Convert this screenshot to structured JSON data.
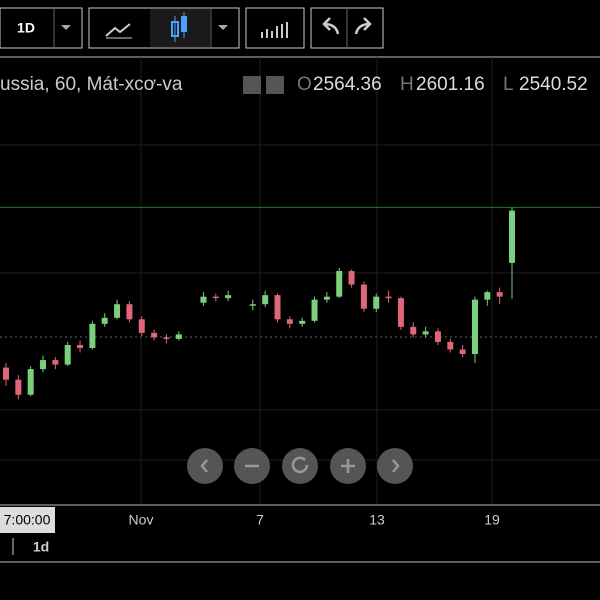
{
  "toolbar": {
    "interval": "1D"
  },
  "chart_data": {
    "type": "candlestick",
    "symbol": "ussia, 60, Mát-xcơ-va",
    "ohlc_labels": [
      "O",
      "H",
      "L"
    ],
    "up_color": "#7ccf7c",
    "down_color": "#e0667a",
    "ylim": [
      2404,
      2712
    ],
    "candles": [
      {
        "o": 2495,
        "h": 2498,
        "l": 2483,
        "c": 2487
      },
      {
        "o": 2487,
        "h": 2490,
        "l": 2474,
        "c": 2477
      },
      {
        "o": 2477,
        "h": 2496,
        "l": 2476,
        "c": 2494
      },
      {
        "o": 2494,
        "h": 2503,
        "l": 2492,
        "c": 2500
      },
      {
        "o": 2500,
        "h": 2502,
        "l": 2494,
        "c": 2497
      },
      {
        "o": 2497,
        "h": 2512,
        "l": 2496,
        "c": 2510
      },
      {
        "o": 2510,
        "h": 2513,
        "l": 2505,
        "c": 2508
      },
      {
        "o": 2508,
        "h": 2526,
        "l": 2507,
        "c": 2524
      },
      {
        "o": 2524,
        "h": 2531,
        "l": 2522,
        "c": 2528
      },
      {
        "o": 2528,
        "h": 2540,
        "l": 2527,
        "c": 2537
      },
      {
        "o": 2537,
        "h": 2539,
        "l": 2525,
        "c": 2527
      },
      {
        "o": 2527,
        "h": 2529,
        "l": 2516,
        "c": 2518
      },
      {
        "o": 2518,
        "h": 2520,
        "l": 2513,
        "c": 2515
      },
      {
        "o": 2515,
        "h": 2517,
        "l": 2511,
        "c": 2514
      },
      {
        "o": 2514,
        "h": 2519,
        "l": 2513,
        "c": 2517
      },
      null,
      {
        "o": 2538,
        "h": 2545,
        "l": 2536,
        "c": 2542
      },
      {
        "o": 2542,
        "h": 2544,
        "l": 2539,
        "c": 2541
      },
      {
        "o": 2541,
        "h": 2546,
        "l": 2539,
        "c": 2543
      },
      null,
      {
        "o": 2536,
        "h": 2540,
        "l": 2533,
        "c": 2537
      },
      {
        "o": 2537,
        "h": 2546,
        "l": 2535,
        "c": 2543
      },
      {
        "o": 2543,
        "h": 2544,
        "l": 2525,
        "c": 2527
      },
      {
        "o": 2527,
        "h": 2529,
        "l": 2521,
        "c": 2524
      },
      {
        "o": 2524,
        "h": 2528,
        "l": 2522,
        "c": 2526
      },
      {
        "o": 2526,
        "h": 2542,
        "l": 2525,
        "c": 2540
      },
      {
        "o": 2540,
        "h": 2545,
        "l": 2538,
        "c": 2542
      },
      {
        "o": 2542,
        "h": 2561,
        "l": 2541,
        "c": 2559
      },
      {
        "o": 2559,
        "h": 2560,
        "l": 2548,
        "c": 2550
      },
      {
        "o": 2550,
        "h": 2552,
        "l": 2532,
        "c": 2534
      },
      {
        "o": 2534,
        "h": 2544,
        "l": 2532,
        "c": 2542
      },
      {
        "o": 2542,
        "h": 2546,
        "l": 2538,
        "c": 2541
      },
      {
        "o": 2541,
        "h": 2542,
        "l": 2520,
        "c": 2522
      },
      {
        "o": 2522,
        "h": 2525,
        "l": 2515,
        "c": 2517
      },
      {
        "o": 2517,
        "h": 2522,
        "l": 2515,
        "c": 2519
      },
      {
        "o": 2519,
        "h": 2521,
        "l": 2510,
        "c": 2512
      },
      {
        "o": 2512,
        "h": 2514,
        "l": 2505,
        "c": 2507
      },
      {
        "o": 2507,
        "h": 2510,
        "l": 2502,
        "c": 2504
      },
      {
        "o": 2504,
        "h": 2542,
        "l": 2498,
        "c": 2540
      },
      {
        "o": 2540,
        "h": 2546,
        "l": 2536,
        "c": 2545
      },
      {
        "o": 2545,
        "h": 2548,
        "l": 2537,
        "c": 2542
      },
      {
        "o": 2564.36,
        "h": 2601.16,
        "l": 2540.52,
        "c": 2599
      }
    ],
    "x_labels": [
      "Nov",
      "7",
      "13",
      "19"
    ],
    "crosshair_time": "7:00:00"
  },
  "footer": {
    "range": "1d"
  }
}
